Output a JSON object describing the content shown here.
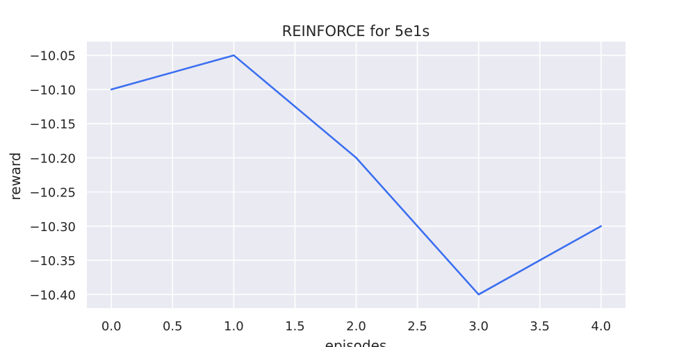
{
  "chart_data": {
    "type": "line",
    "title": "REINFORCE for 5e1s",
    "xlabel": "episodes",
    "ylabel": "reward",
    "x": [
      0,
      1,
      2,
      3,
      4
    ],
    "series": [
      {
        "values": [
          -10.1,
          -10.05,
          -10.2,
          -10.4,
          -10.3
        ]
      }
    ],
    "xlim": [
      -0.2,
      4.2
    ],
    "ylim": [
      -10.42,
      -10.03
    ],
    "x_ticks": [
      0.0,
      0.5,
      1.0,
      1.5,
      2.0,
      2.5,
      3.0,
      3.5,
      4.0
    ],
    "x_tick_labels": [
      "0.0",
      "0.5",
      "1.0",
      "1.5",
      "2.0",
      "2.5",
      "3.0",
      "3.5",
      "4.0"
    ],
    "y_ticks": [
      -10.05,
      -10.1,
      -10.15,
      -10.2,
      -10.25,
      -10.3,
      -10.35,
      -10.4
    ],
    "y_tick_labels": [
      "−10.05",
      "−10.10",
      "−10.15",
      "−10.20",
      "−10.25",
      "−10.30",
      "−10.35",
      "−10.40"
    ],
    "grid": true,
    "line_color": "#3b6ff0",
    "plot_background": "#eaeaf2",
    "grid_color": "#ffffff"
  }
}
